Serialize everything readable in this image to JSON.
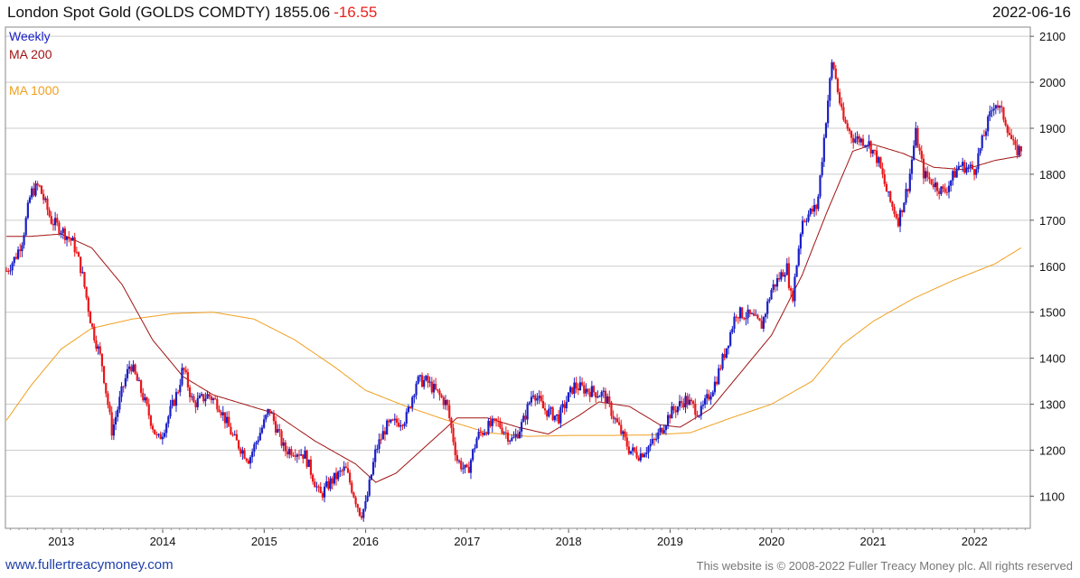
{
  "header": {
    "title": "London Spot Gold (GOLDS COMDTY) 1855.06",
    "change": "-16.55",
    "date": "2022-06-16"
  },
  "footer": {
    "site": "www.fullertreacymoney.com",
    "copyright": "This website is © 2008-2022 Fuller Treacy Money plc. All rights reserved"
  },
  "colors": {
    "up": "#1a1fc4",
    "down": "#e8161a",
    "ma200": "#a01414",
    "ma1000": "#f0a020",
    "grid": "#cccccc"
  },
  "chart_data": {
    "type": "candlestick",
    "title": "London Spot Gold (GOLDS COMDTY) 1855.06 -16.55",
    "frequency_label": "Weekly",
    "ylim": [
      1030,
      2120
    ],
    "y_ticks": [
      1100,
      1200,
      1300,
      1400,
      1500,
      1600,
      1700,
      1800,
      1900,
      2000,
      2100
    ],
    "xlim": [
      2012.45,
      2022.55
    ],
    "x_tick_labels": [
      "2013",
      "2014",
      "2015",
      "2016",
      "2017",
      "2018",
      "2019",
      "2020",
      "2021",
      "2022"
    ],
    "x_tick_positions": [
      2013,
      2014,
      2015,
      2016,
      2017,
      2018,
      2019,
      2020,
      2021,
      2022
    ],
    "legend": [
      "Weekly",
      "MA 200",
      "MA 1000"
    ],
    "price_anchors": [
      [
        2012.46,
        1590
      ],
      [
        2012.55,
        1620
      ],
      [
        2012.62,
        1660
      ],
      [
        2012.7,
        1760
      ],
      [
        2012.78,
        1775
      ],
      [
        2012.9,
        1700
      ],
      [
        2013.0,
        1680
      ],
      [
        2013.12,
        1650
      ],
      [
        2013.2,
        1590
      ],
      [
        2013.3,
        1470
      ],
      [
        2013.4,
        1390
      ],
      [
        2013.5,
        1240
      ],
      [
        2013.6,
        1330
      ],
      [
        2013.68,
        1390
      ],
      [
        2013.8,
        1320
      ],
      [
        2013.95,
        1220
      ],
      [
        2014.0,
        1240
      ],
      [
        2014.15,
        1330
      ],
      [
        2014.2,
        1380
      ],
      [
        2014.3,
        1300
      ],
      [
        2014.45,
        1320
      ],
      [
        2014.55,
        1300
      ],
      [
        2014.7,
        1225
      ],
      [
        2014.85,
        1180
      ],
      [
        2015.0,
        1260
      ],
      [
        2015.05,
        1290
      ],
      [
        2015.2,
        1200
      ],
      [
        2015.3,
        1200
      ],
      [
        2015.4,
        1190
      ],
      [
        2015.55,
        1100
      ],
      [
        2015.65,
        1130
      ],
      [
        2015.8,
        1160
      ],
      [
        2015.95,
        1060
      ],
      [
        2016.0,
        1080
      ],
      [
        2016.1,
        1200
      ],
      [
        2016.2,
        1250
      ],
      [
        2016.4,
        1270
      ],
      [
        2016.5,
        1350
      ],
      [
        2016.6,
        1350
      ],
      [
        2016.8,
        1300
      ],
      [
        2016.9,
        1180
      ],
      [
        2017.0,
        1150
      ],
      [
        2017.1,
        1230
      ],
      [
        2017.2,
        1250
      ],
      [
        2017.3,
        1260
      ],
      [
        2017.45,
        1220
      ],
      [
        2017.55,
        1260
      ],
      [
        2017.65,
        1330
      ],
      [
        2017.75,
        1290
      ],
      [
        2017.9,
        1270
      ],
      [
        2018.05,
        1340
      ],
      [
        2018.2,
        1330
      ],
      [
        2018.35,
        1320
      ],
      [
        2018.45,
        1270
      ],
      [
        2018.6,
        1200
      ],
      [
        2018.7,
        1190
      ],
      [
        2018.85,
        1220
      ],
      [
        2019.0,
        1280
      ],
      [
        2019.15,
        1310
      ],
      [
        2019.3,
        1280
      ],
      [
        2019.45,
        1350
      ],
      [
        2019.55,
        1420
      ],
      [
        2019.65,
        1500
      ],
      [
        2019.8,
        1490
      ],
      [
        2019.9,
        1470
      ],
      [
        2020.0,
        1550
      ],
      [
        2020.15,
        1600
      ],
      [
        2020.2,
        1520
      ],
      [
        2020.3,
        1700
      ],
      [
        2020.45,
        1730
      ],
      [
        2020.55,
        1950
      ],
      [
        2020.6,
        2050
      ],
      [
        2020.7,
        1920
      ],
      [
        2020.8,
        1880
      ],
      [
        2020.95,
        1870
      ],
      [
        2021.05,
        1830
      ],
      [
        2021.15,
        1750
      ],
      [
        2021.25,
        1700
      ],
      [
        2021.35,
        1780
      ],
      [
        2021.42,
        1890
      ],
      [
        2021.5,
        1800
      ],
      [
        2021.6,
        1780
      ],
      [
        2021.7,
        1760
      ],
      [
        2021.85,
        1820
      ],
      [
        2022.0,
        1810
      ],
      [
        2022.1,
        1890
      ],
      [
        2022.2,
        1960
      ],
      [
        2022.3,
        1920
      ],
      [
        2022.4,
        1850
      ],
      [
        2022.46,
        1855
      ]
    ],
    "ma200": [
      [
        2012.46,
        1665
      ],
      [
        2012.7,
        1665
      ],
      [
        2013.0,
        1670
      ],
      [
        2013.3,
        1640
      ],
      [
        2013.6,
        1560
      ],
      [
        2013.9,
        1440
      ],
      [
        2014.2,
        1360
      ],
      [
        2014.5,
        1320
      ],
      [
        2014.8,
        1300
      ],
      [
        2015.1,
        1280
      ],
      [
        2015.5,
        1220
      ],
      [
        2015.9,
        1170
      ],
      [
        2016.1,
        1130
      ],
      [
        2016.3,
        1150
      ],
      [
        2016.6,
        1210
      ],
      [
        2016.9,
        1270
      ],
      [
        2017.2,
        1270
      ],
      [
        2017.5,
        1250
      ],
      [
        2017.8,
        1235
      ],
      [
        2018.1,
        1275
      ],
      [
        2018.3,
        1305
      ],
      [
        2018.6,
        1295
      ],
      [
        2018.9,
        1255
      ],
      [
        2019.1,
        1250
      ],
      [
        2019.4,
        1290
      ],
      [
        2019.7,
        1370
      ],
      [
        2020.0,
        1450
      ],
      [
        2020.3,
        1580
      ],
      [
        2020.55,
        1720
      ],
      [
        2020.8,
        1850
      ],
      [
        2021.0,
        1865
      ],
      [
        2021.3,
        1845
      ],
      [
        2021.6,
        1815
      ],
      [
        2021.9,
        1810
      ],
      [
        2022.2,
        1830
      ],
      [
        2022.46,
        1840
      ]
    ],
    "ma1000": [
      [
        2012.46,
        1265
      ],
      [
        2012.7,
        1340
      ],
      [
        2013.0,
        1420
      ],
      [
        2013.3,
        1465
      ],
      [
        2013.7,
        1485
      ],
      [
        2014.1,
        1497
      ],
      [
        2014.5,
        1500
      ],
      [
        2014.9,
        1485
      ],
      [
        2015.3,
        1440
      ],
      [
        2015.7,
        1380
      ],
      [
        2016.0,
        1330
      ],
      [
        2016.4,
        1295
      ],
      [
        2016.8,
        1265
      ],
      [
        2017.2,
        1238
      ],
      [
        2017.6,
        1230
      ],
      [
        2018.0,
        1232
      ],
      [
        2018.4,
        1232
      ],
      [
        2018.8,
        1233
      ],
      [
        2019.2,
        1238
      ],
      [
        2019.6,
        1270
      ],
      [
        2020.0,
        1300
      ],
      [
        2020.4,
        1350
      ],
      [
        2020.7,
        1430
      ],
      [
        2021.0,
        1480
      ],
      [
        2021.4,
        1530
      ],
      [
        2021.8,
        1570
      ],
      [
        2022.2,
        1605
      ],
      [
        2022.46,
        1640
      ]
    ]
  }
}
